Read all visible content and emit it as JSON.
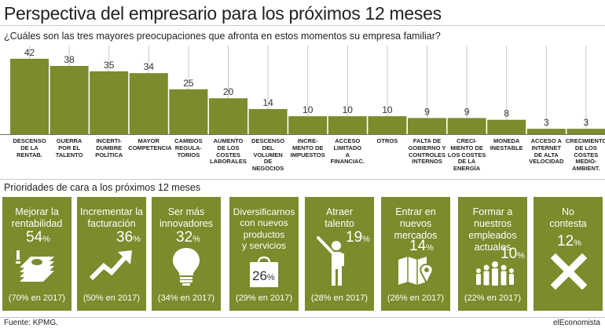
{
  "header": {
    "title": "Perspectiva del empresario para los próximos 12 meses",
    "subtitle": "¿Cuáles son las tres mayores preocupaciones que afronta en estos momentos su empresa familiar?"
  },
  "chart_data": {
    "type": "bar",
    "title": "¿Cuáles son las tres mayores preocupaciones que afronta en estos momentos su empresa familiar?",
    "categories": [
      "DESCENSO DE LA RENTAB.",
      "GUERRA POR EL TALENTO",
      "INCERTI- DUMBRE POLÍTICA",
      "MAYOR COMPETENCIA",
      "CAMBIOS REGULA- TORIOS",
      "AUMENTO DE LOS COSTES LABORALES",
      "DESCENSO DEL VOLUMEN DE NEGOCIOS",
      "INCRE- MENTO DE IMPUESTOS",
      "ACCESO LIMITADO A FINANCIAC.",
      "OTROS",
      "FALTA DE GOBIERNO Y CONTROLES INTERNOS",
      "CRECI- MIENTO DE LOS COSTES DE LA ENERGÍA",
      "MONEDA INESTABLE",
      "ACCESO A INTERNET DE ALTA VELOCIDAD",
      "CRECIMIENTO DE LOS COSTES MEDIO- AMBIENT."
    ],
    "category_lines": [
      "DESCENSO\nDE LA\nRENTAB.",
      "GUERRA\nPOR EL\nTALENTO",
      "INCERTI-\nDUMBRE\nPOLÍTICA",
      "MAYOR\nCOMPETENCIA",
      "CAMBIOS\nREGULA-\nTORIOS",
      "AUMENTO\nDE LOS COSTES\nLABORALES",
      "DESCENSO\nDEL\nVOLUMEN\nDE NEGOCIOS",
      "INCRE-\nMENTO DE\nIMPUESTOS",
      "ACCESO\nLIMITADO\nA\nFINANCIAC.",
      "OTROS",
      "FALTA DE\nGOBIERNO Y\nCONTROLES\nINTERNOS",
      "CRECI-\nMIENTO DE\nLOS COSTES\nDE LA ENERGÍA",
      "MONEDA\nINESTABLE",
      "ACCESO A\nINTERNET\nDE ALTA\nVELOCIDAD",
      "CRECIMIENTO\nDE LOS\nCOSTES MEDIO-\nAMBIENT."
    ],
    "values": [
      42,
      38,
      35,
      34,
      25,
      20,
      14,
      10,
      10,
      10,
      9,
      9,
      8,
      3,
      3
    ],
    "xlabel": "",
    "ylabel": "",
    "ylim": [
      0,
      45
    ],
    "grid": true,
    "legend": "none"
  },
  "priorities": {
    "title": "Prioridades de cara a los próximos 12 meses",
    "cards": [
      {
        "label": "Mejorar la\nrentabilidad",
        "value": "54",
        "unit": "%",
        "previous": "(70% en 2017)",
        "icon": "money-icon"
      },
      {
        "label": "Incrementar la\nfacturación",
        "value": "36",
        "unit": "%",
        "previous": "(50% en 2017)",
        "icon": "trend-up-icon"
      },
      {
        "label": "Ser más\ninnovadores",
        "value": "32",
        "unit": "%",
        "previous": "(34% en 2017)",
        "icon": "lightbulb-icon"
      },
      {
        "label": "Diversificarnos\ncon nuevos\nproductos\ny servicios",
        "value": "26",
        "unit": "%",
        "previous": "(29% en 2017)",
        "icon": "shopping-bag-icon"
      },
      {
        "label": "Atraer\ntalento",
        "value": "19",
        "unit": "%",
        "previous": "(28% en 2017)",
        "icon": "person-pointing-icon"
      },
      {
        "label": "Entrar en\nnuevos\nmercados",
        "value": "14",
        "unit": "%",
        "previous": "(26% en 2017)",
        "icon": "map-pin-icon"
      },
      {
        "label": "Formar a\nnuestros\nempleados\nactuales",
        "value": "10",
        "unit": "%",
        "previous": "(22% en 2017)",
        "icon": "people-group-icon"
      },
      {
        "label": "No\ncontesta",
        "value": "12",
        "unit": "%",
        "previous": "",
        "icon": "cross-icon"
      }
    ]
  },
  "footer": {
    "source": "Fuente: KPMG.",
    "brand": "elEconomista"
  },
  "colors": {
    "accent": "#7c8b2b",
    "card_text": "#ffffff"
  }
}
